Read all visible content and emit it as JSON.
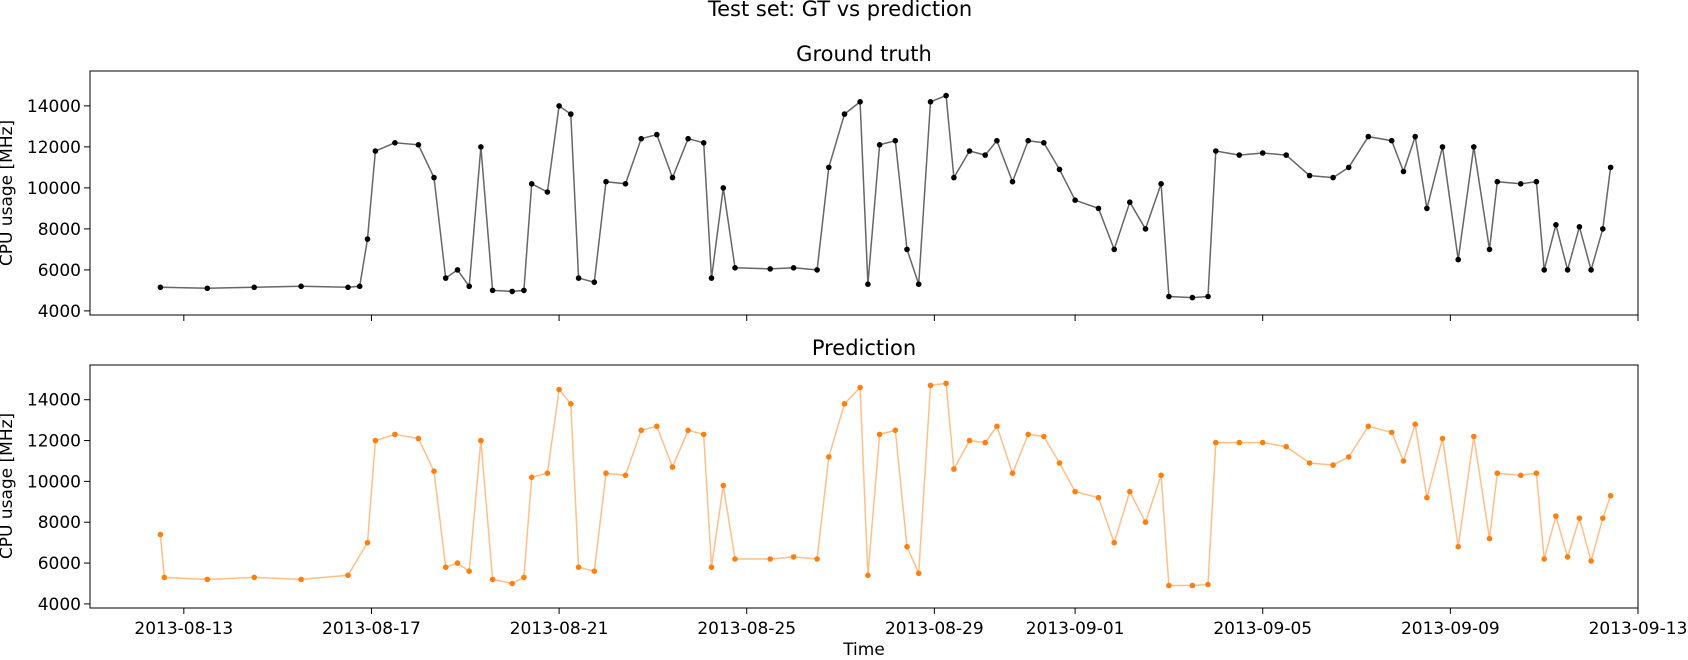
{
  "figure": {
    "title": "Test set: GT vs prediction",
    "xlabel": "Time"
  },
  "chart_data": [
    {
      "type": "line",
      "title": "Ground truth",
      "xlabel": "",
      "ylabel": "CPU usage [MHz]",
      "color": "#000000",
      "line_color": "#666666",
      "marker": "dot",
      "xlim": [
        "2013-08-11",
        "2013-09-13"
      ],
      "ylim": [
        3800,
        15700
      ],
      "x_ticks": [
        "2013-08-13",
        "2013-08-17",
        "2013-08-21",
        "2013-08-25",
        "2013-08-29",
        "2013-09-01",
        "2013-09-05",
        "2013-09-09",
        "2013-09-13"
      ],
      "y_ticks": [
        4000,
        6000,
        8000,
        10000,
        12000,
        14000
      ],
      "x_tick_labels_visible": false,
      "points": [
        [
          "2013-08-12T12:00",
          5150
        ],
        [
          "2013-08-13T12:00",
          5100
        ],
        [
          "2013-08-14T12:00",
          5150
        ],
        [
          "2013-08-15T12:00",
          5200
        ],
        [
          "2013-08-16T12:00",
          5150
        ],
        [
          "2013-08-16T18:00",
          5200
        ],
        [
          "2013-08-16T22:00",
          7500
        ],
        [
          "2013-08-17T02:00",
          11800
        ],
        [
          "2013-08-17T12:00",
          12200
        ],
        [
          "2013-08-18T00:00",
          12100
        ],
        [
          "2013-08-18T08:00",
          10500
        ],
        [
          "2013-08-18T14:00",
          5600
        ],
        [
          "2013-08-18T20:00",
          6000
        ],
        [
          "2013-08-19T02:00",
          5200
        ],
        [
          "2013-08-19T08:00",
          12000
        ],
        [
          "2013-08-19T14:00",
          5000
        ],
        [
          "2013-08-20T00:00",
          4950
        ],
        [
          "2013-08-20T06:00",
          5000
        ],
        [
          "2013-08-20T10:00",
          10200
        ],
        [
          "2013-08-20T18:00",
          9800
        ],
        [
          "2013-08-21T00:00",
          14000
        ],
        [
          "2013-08-21T06:00",
          13600
        ],
        [
          "2013-08-21T10:00",
          5600
        ],
        [
          "2013-08-21T18:00",
          5400
        ],
        [
          "2013-08-22T00:00",
          10300
        ],
        [
          "2013-08-22T10:00",
          10200
        ],
        [
          "2013-08-22T18:00",
          12400
        ],
        [
          "2013-08-23T02:00",
          12600
        ],
        [
          "2013-08-23T10:00",
          10500
        ],
        [
          "2013-08-23T18:00",
          12400
        ],
        [
          "2013-08-24T02:00",
          12200
        ],
        [
          "2013-08-24T06:00",
          5600
        ],
        [
          "2013-08-24T12:00",
          10000
        ],
        [
          "2013-08-24T18:00",
          6100
        ],
        [
          "2013-08-25T12:00",
          6050
        ],
        [
          "2013-08-26T00:00",
          6100
        ],
        [
          "2013-08-26T12:00",
          6000
        ],
        [
          "2013-08-26T18:00",
          11000
        ],
        [
          "2013-08-27T02:00",
          13600
        ],
        [
          "2013-08-27T10:00",
          14200
        ],
        [
          "2013-08-27T14:00",
          5300
        ],
        [
          "2013-08-27T20:00",
          12100
        ],
        [
          "2013-08-28T04:00",
          12300
        ],
        [
          "2013-08-28T10:00",
          7000
        ],
        [
          "2013-08-28T16:00",
          5300
        ],
        [
          "2013-08-28T22:00",
          14200
        ],
        [
          "2013-08-29T06:00",
          14500
        ],
        [
          "2013-08-29T10:00",
          10500
        ],
        [
          "2013-08-29T18:00",
          11800
        ],
        [
          "2013-08-30T02:00",
          11600
        ],
        [
          "2013-08-30T08:00",
          12300
        ],
        [
          "2013-08-30T16:00",
          10300
        ],
        [
          "2013-08-31T00:00",
          12300
        ],
        [
          "2013-08-31T08:00",
          12200
        ],
        [
          "2013-08-31T16:00",
          10900
        ],
        [
          "2013-09-01T00:00",
          9400
        ],
        [
          "2013-09-01T12:00",
          9000
        ],
        [
          "2013-09-01T20:00",
          7000
        ],
        [
          "2013-09-02T04:00",
          9300
        ],
        [
          "2013-09-02T12:00",
          8000
        ],
        [
          "2013-09-02T20:00",
          10200
        ],
        [
          "2013-09-03T00:00",
          4700
        ],
        [
          "2013-09-03T12:00",
          4650
        ],
        [
          "2013-09-03T20:00",
          4700
        ],
        [
          "2013-09-04T00:00",
          11800
        ],
        [
          "2013-09-04T12:00",
          11600
        ],
        [
          "2013-09-05T00:00",
          11700
        ],
        [
          "2013-09-05T12:00",
          11600
        ],
        [
          "2013-09-06T00:00",
          10600
        ],
        [
          "2013-09-06T12:00",
          10500
        ],
        [
          "2013-09-06T20:00",
          11000
        ],
        [
          "2013-09-07T06:00",
          12500
        ],
        [
          "2013-09-07T18:00",
          12300
        ],
        [
          "2013-09-08T00:00",
          10800
        ],
        [
          "2013-09-08T06:00",
          12500
        ],
        [
          "2013-09-08T12:00",
          9000
        ],
        [
          "2013-09-08T20:00",
          12000
        ],
        [
          "2013-09-09T04:00",
          6500
        ],
        [
          "2013-09-09T12:00",
          12000
        ],
        [
          "2013-09-09T20:00",
          7000
        ],
        [
          "2013-09-10T00:00",
          10300
        ],
        [
          "2013-09-10T12:00",
          10200
        ],
        [
          "2013-09-10T20:00",
          10300
        ],
        [
          "2013-09-11T00:00",
          6000
        ],
        [
          "2013-09-11T06:00",
          8200
        ],
        [
          "2013-09-11T12:00",
          6000
        ],
        [
          "2013-09-11T18:00",
          8100
        ],
        [
          "2013-09-12T00:00",
          6000
        ],
        [
          "2013-09-12T06:00",
          8000
        ],
        [
          "2013-09-12T10:00",
          11000
        ]
      ]
    },
    {
      "type": "line",
      "title": "Prediction",
      "xlabel": "Time",
      "ylabel": "CPU usage [MHz]",
      "color": "#ff7f0e",
      "line_color": "#ffbf86",
      "marker": "dot",
      "xlim": [
        "2013-08-11",
        "2013-09-13"
      ],
      "ylim": [
        3800,
        15700
      ],
      "x_ticks": [
        "2013-08-13",
        "2013-08-17",
        "2013-08-21",
        "2013-08-25",
        "2013-08-29",
        "2013-09-01",
        "2013-09-05",
        "2013-09-09",
        "2013-09-13"
      ],
      "y_ticks": [
        4000,
        6000,
        8000,
        10000,
        12000,
        14000
      ],
      "x_tick_labels_visible": true,
      "points": [
        [
          "2013-08-12T12:00",
          7400
        ],
        [
          "2013-08-12T14:00",
          5300
        ],
        [
          "2013-08-13T12:00",
          5200
        ],
        [
          "2013-08-14T12:00",
          5300
        ],
        [
          "2013-08-15T12:00",
          5200
        ],
        [
          "2013-08-16T12:00",
          5400
        ],
        [
          "2013-08-16T22:00",
          7000
        ],
        [
          "2013-08-17T02:00",
          12000
        ],
        [
          "2013-08-17T12:00",
          12300
        ],
        [
          "2013-08-18T00:00",
          12100
        ],
        [
          "2013-08-18T08:00",
          10500
        ],
        [
          "2013-08-18T14:00",
          5800
        ],
        [
          "2013-08-18T20:00",
          6000
        ],
        [
          "2013-08-19T02:00",
          5600
        ],
        [
          "2013-08-19T08:00",
          12000
        ],
        [
          "2013-08-19T14:00",
          5200
        ],
        [
          "2013-08-20T00:00",
          5000
        ],
        [
          "2013-08-20T06:00",
          5300
        ],
        [
          "2013-08-20T10:00",
          10200
        ],
        [
          "2013-08-20T18:00",
          10400
        ],
        [
          "2013-08-21T00:00",
          14500
        ],
        [
          "2013-08-21T06:00",
          13800
        ],
        [
          "2013-08-21T10:00",
          5800
        ],
        [
          "2013-08-21T18:00",
          5600
        ],
        [
          "2013-08-22T00:00",
          10400
        ],
        [
          "2013-08-22T10:00",
          10300
        ],
        [
          "2013-08-22T18:00",
          12500
        ],
        [
          "2013-08-23T02:00",
          12700
        ],
        [
          "2013-08-23T10:00",
          10700
        ],
        [
          "2013-08-23T18:00",
          12500
        ],
        [
          "2013-08-24T02:00",
          12300
        ],
        [
          "2013-08-24T06:00",
          5800
        ],
        [
          "2013-08-24T12:00",
          9800
        ],
        [
          "2013-08-24T18:00",
          6200
        ],
        [
          "2013-08-25T12:00",
          6200
        ],
        [
          "2013-08-26T00:00",
          6300
        ],
        [
          "2013-08-26T12:00",
          6200
        ],
        [
          "2013-08-26T18:00",
          11200
        ],
        [
          "2013-08-27T02:00",
          13800
        ],
        [
          "2013-08-27T10:00",
          14600
        ],
        [
          "2013-08-27T14:00",
          5400
        ],
        [
          "2013-08-27T20:00",
          12300
        ],
        [
          "2013-08-28T04:00",
          12500
        ],
        [
          "2013-08-28T10:00",
          6800
        ],
        [
          "2013-08-28T16:00",
          5500
        ],
        [
          "2013-08-28T22:00",
          14700
        ],
        [
          "2013-08-29T06:00",
          14800
        ],
        [
          "2013-08-29T10:00",
          10600
        ],
        [
          "2013-08-29T18:00",
          12000
        ],
        [
          "2013-08-30T02:00",
          11900
        ],
        [
          "2013-08-30T08:00",
          12700
        ],
        [
          "2013-08-30T16:00",
          10400
        ],
        [
          "2013-08-31T00:00",
          12300
        ],
        [
          "2013-08-31T08:00",
          12200
        ],
        [
          "2013-08-31T16:00",
          10900
        ],
        [
          "2013-09-01T00:00",
          9500
        ],
        [
          "2013-09-01T12:00",
          9200
        ],
        [
          "2013-09-01T20:00",
          7000
        ],
        [
          "2013-09-02T04:00",
          9500
        ],
        [
          "2013-09-02T12:00",
          8000
        ],
        [
          "2013-09-02T20:00",
          10300
        ],
        [
          "2013-09-03T00:00",
          4900
        ],
        [
          "2013-09-03T12:00",
          4900
        ],
        [
          "2013-09-03T20:00",
          4950
        ],
        [
          "2013-09-04T00:00",
          11900
        ],
        [
          "2013-09-04T12:00",
          11900
        ],
        [
          "2013-09-05T00:00",
          11900
        ],
        [
          "2013-09-05T12:00",
          11700
        ],
        [
          "2013-09-06T00:00",
          10900
        ],
        [
          "2013-09-06T12:00",
          10800
        ],
        [
          "2013-09-06T20:00",
          11200
        ],
        [
          "2013-09-07T06:00",
          12700
        ],
        [
          "2013-09-07T18:00",
          12400
        ],
        [
          "2013-09-08T00:00",
          11000
        ],
        [
          "2013-09-08T06:00",
          12800
        ],
        [
          "2013-09-08T12:00",
          9200
        ],
        [
          "2013-09-08T20:00",
          12100
        ],
        [
          "2013-09-09T04:00",
          6800
        ],
        [
          "2013-09-09T12:00",
          12200
        ],
        [
          "2013-09-09T20:00",
          7200
        ],
        [
          "2013-09-10T00:00",
          10400
        ],
        [
          "2013-09-10T12:00",
          10300
        ],
        [
          "2013-09-10T20:00",
          10400
        ],
        [
          "2013-09-11T00:00",
          6200
        ],
        [
          "2013-09-11T06:00",
          8300
        ],
        [
          "2013-09-11T12:00",
          6300
        ],
        [
          "2013-09-11T18:00",
          8200
        ],
        [
          "2013-09-12T00:00",
          6100
        ],
        [
          "2013-09-12T06:00",
          8200
        ],
        [
          "2013-09-12T10:00",
          9300
        ]
      ]
    }
  ]
}
